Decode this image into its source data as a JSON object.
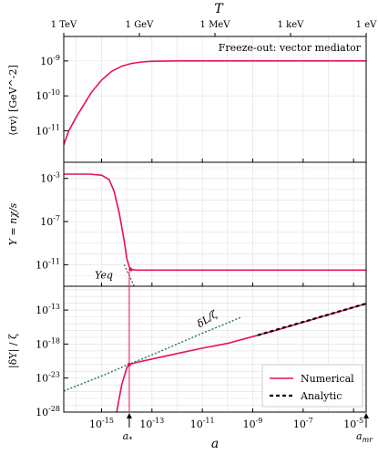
{
  "colors": {
    "numerical": "#e8105a",
    "analytic": "#000000",
    "eq": "#555555",
    "delta_zeta": "#2e7d4f",
    "grid": "#e4e4e4"
  },
  "top_axis": {
    "label": "T",
    "ticks": [
      {
        "a_log": -16.5,
        "label": "1 TeV"
      },
      {
        "a_log": -13.5,
        "label": "1 GeV"
      },
      {
        "a_log": -10.5,
        "label": "1 MeV"
      },
      {
        "a_log": -7.5,
        "label": "1 keV"
      },
      {
        "a_log": -4.5,
        "label": "1 eV"
      }
    ]
  },
  "bottom_axis": {
    "label": "a",
    "xlim_log": [
      -16.5,
      -4.5
    ],
    "ticks": [
      {
        "a_log": -15,
        "label": "10^-15"
      },
      {
        "a_log": -13,
        "label": "10^-13"
      },
      {
        "a_log": -11,
        "label": "10^-11"
      },
      {
        "a_log": -9,
        "label": "10^-9"
      },
      {
        "a_log": -7,
        "label": "10^-7"
      },
      {
        "a_log": -5,
        "label": "10^-5"
      }
    ],
    "markers": [
      {
        "a_log": -13.9,
        "label": "a*"
      },
      {
        "a_log": -4.5,
        "label": "amr"
      }
    ]
  },
  "chart_data": [
    {
      "type": "line",
      "ylabel": "⟨σv⟩ [GeV^-2]",
      "ylim_log": [
        -11.9,
        -8.3
      ],
      "yticks": [
        {
          "v": -9,
          "label": "10^-9"
        },
        {
          "v": -10,
          "label": "10^-10"
        },
        {
          "v": -11,
          "label": "10^-11"
        }
      ],
      "annotation": "Freeze-out: vector mediator",
      "series": [
        {
          "name": "Numerical",
          "x": [
            -16.5,
            -16.3,
            -16.0,
            -15.7,
            -15.4,
            -15.0,
            -14.6,
            -14.2,
            -13.8,
            -13.4,
            -13.0,
            -12.0,
            -10.0,
            -8.0,
            -6.0,
            -4.5
          ],
          "y": [
            -11.4,
            -11.0,
            -10.6,
            -10.25,
            -9.9,
            -9.55,
            -9.3,
            -9.15,
            -9.07,
            -9.03,
            -9.01,
            -9.0,
            -9.0,
            -9.0,
            -9.0,
            -9.0
          ]
        }
      ]
    },
    {
      "type": "line",
      "ylabel": "Y = nχ/s",
      "ylim_log": [
        -13.0,
        -1.5
      ],
      "yticks": [
        {
          "v": -3,
          "label": "10^-3"
        },
        {
          "v": -7,
          "label": "10^-7"
        },
        {
          "v": -11,
          "label": "10^-11"
        }
      ],
      "annotation": "Yeq",
      "series": [
        {
          "name": "Numerical",
          "x": [
            -16.5,
            -15.5,
            -15.0,
            -14.7,
            -14.5,
            -14.3,
            -14.1,
            -14.0,
            -13.9,
            -13.8,
            -13.6,
            -13.0,
            -11.0,
            -8.0,
            -4.5
          ],
          "y": [
            -2.6,
            -2.6,
            -2.7,
            -3.1,
            -4.2,
            -6.2,
            -8.8,
            -10.4,
            -11.2,
            -11.45,
            -11.5,
            -11.5,
            -11.5,
            -11.5,
            -11.5
          ]
        },
        {
          "name": "Yeq",
          "x": [
            -14.1,
            -14.0,
            -13.9,
            -13.8,
            -13.75,
            -13.7
          ],
          "y": [
            -11.0,
            -11.5,
            -12.0,
            -12.5,
            -12.8,
            -13.0
          ]
        }
      ]
    },
    {
      "type": "line",
      "ylabel": "|δY| / ζ",
      "ylim_log": [
        -28,
        -9.5
      ],
      "yticks": [
        {
          "v": -13,
          "label": "10^-13"
        },
        {
          "v": -18,
          "label": "10^-18"
        },
        {
          "v": -23,
          "label": "10^-23"
        },
        {
          "v": -28,
          "label": "10^-28"
        }
      ],
      "annotation": "δL/ζ",
      "series": [
        {
          "name": "Numerical",
          "x": [
            -14.4,
            -14.2,
            -14.0,
            -13.9,
            -13.6,
            -13.0,
            -12.0,
            -11.0,
            -10.0,
            -9.0,
            -8.0,
            -7.0,
            -6.0,
            -5.0,
            -4.5
          ],
          "y": [
            -28,
            -24,
            -21.5,
            -21.0,
            -20.7,
            -20.2,
            -19.4,
            -18.6,
            -17.9,
            -16.9,
            -15.9,
            -14.8,
            -13.7,
            -12.6,
            -12.05
          ]
        },
        {
          "name": "Analytic",
          "x": [
            -8.8,
            -4.5
          ],
          "y": [
            -16.7,
            -12.05
          ]
        },
        {
          "name": "δL/ζ",
          "x": [
            -16.5,
            -15.0,
            -14.0,
            -13.0,
            -12.0,
            -11.0,
            -10.0,
            -9.5
          ],
          "y": [
            -24.9,
            -22.7,
            -21.1,
            -19.6,
            -18.0,
            -16.4,
            -14.9,
            -14.1
          ]
        }
      ],
      "legend": [
        "Numerical",
        "Analytic"
      ]
    }
  ]
}
